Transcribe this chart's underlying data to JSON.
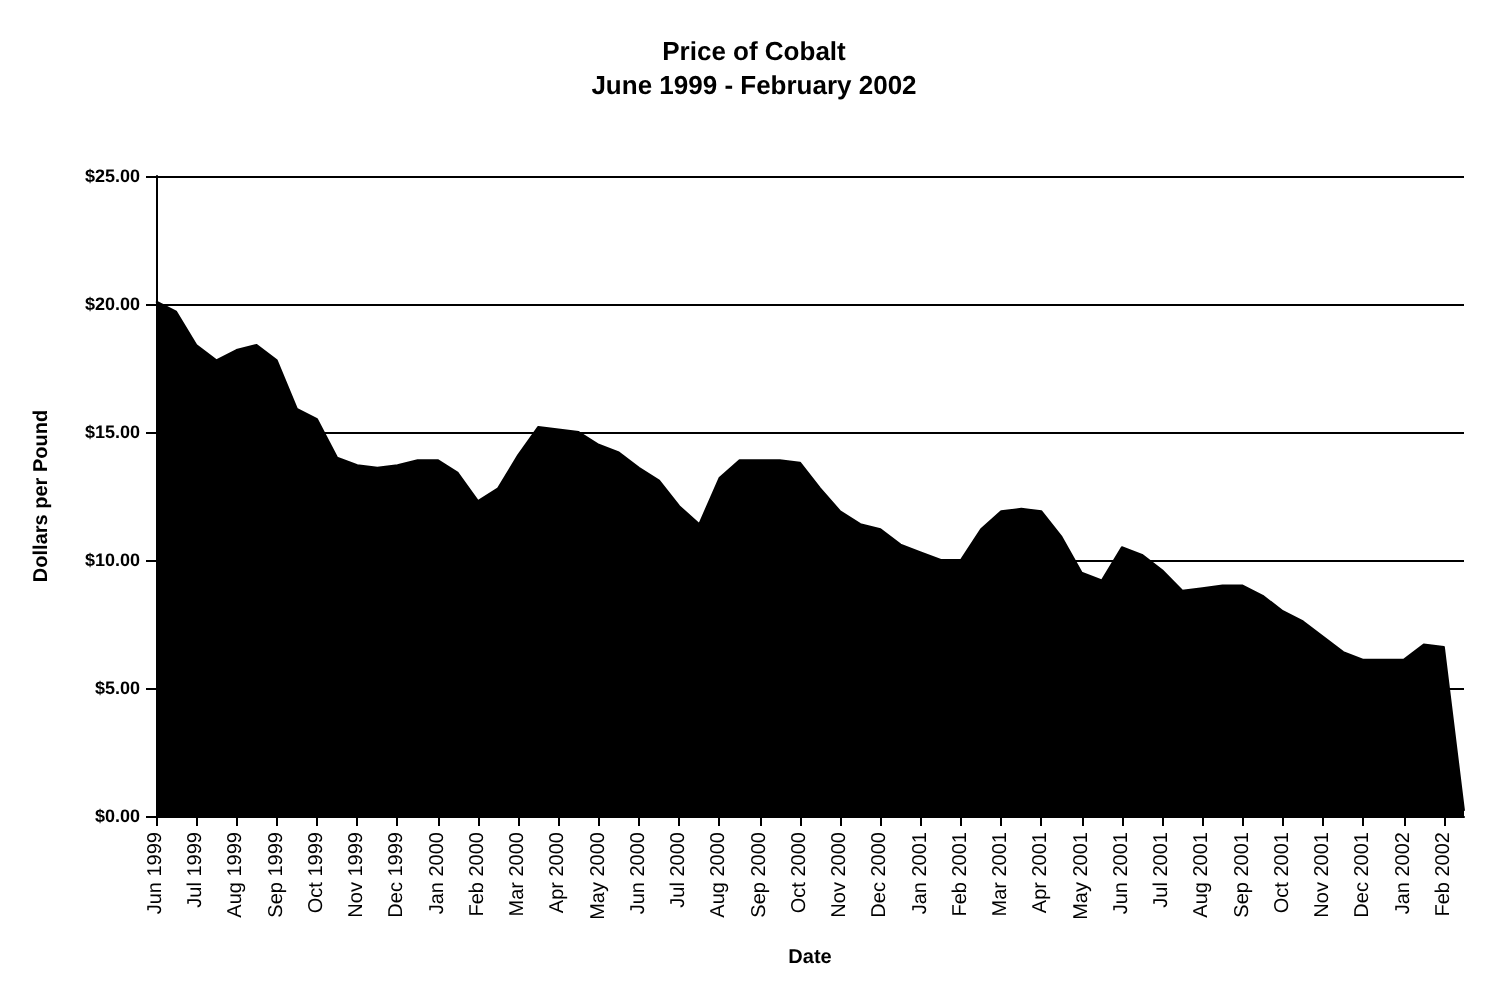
{
  "chart_data": {
    "type": "area",
    "title": "Price of Cobalt",
    "subtitle": "June 1999 - February 2002",
    "xlabel": "Date",
    "ylabel": "Dollars per Pound",
    "categories": [
      "Jun 1999",
      null,
      "Jul 1999",
      null,
      "Aug 1999",
      null,
      "Sep 1999",
      null,
      "Oct 1999",
      null,
      "Nov 1999",
      null,
      "Dec 1999",
      null,
      "Jan 2000",
      null,
      "Feb 2000",
      null,
      "Mar 2000",
      null,
      "Apr 2000",
      null,
      "May 2000",
      null,
      "Jun 2000",
      null,
      "Jul 2000",
      null,
      "Aug 2000",
      null,
      "Sep 2000",
      null,
      "Oct 2000",
      null,
      "Nov 2000",
      null,
      "Dec 2000",
      null,
      "Jan 2001",
      null,
      "Feb 2001",
      null,
      "Mar 2001",
      null,
      "Apr 2001",
      null,
      "May 2001",
      null,
      "Jun 2001",
      null,
      "Jul 2001",
      null,
      "Aug 2001",
      null,
      "Sep 2001",
      null,
      "Oct 2001",
      null,
      "Nov 2001",
      null,
      "Dec 2001",
      null,
      "Jan 2002",
      null,
      "Feb 2002",
      null
    ],
    "series": [
      {
        "color": "#000000",
        "values": [
          20.1,
          19.7,
          18.4,
          17.8,
          18.2,
          18.4,
          17.8,
          15.9,
          15.5,
          14.0,
          13.7,
          13.6,
          13.7,
          13.9,
          13.9,
          13.4,
          12.3,
          12.8,
          14.1,
          15.2,
          15.1,
          15.0,
          14.5,
          14.2,
          13.6,
          13.1,
          12.1,
          11.4,
          13.2,
          13.9,
          13.9,
          13.9,
          13.8,
          12.8,
          11.9,
          11.4,
          11.2,
          10.6,
          10.3,
          10.0,
          10.0,
          11.2,
          11.9,
          12.0,
          11.9,
          10.9,
          9.5,
          9.2,
          10.5,
          10.2,
          9.6,
          8.8,
          8.9,
          9.0,
          9.0,
          8.6,
          8.0,
          7.6,
          7.0,
          6.4,
          6.1,
          6.1,
          6.1,
          6.7,
          6.6,
          0.2
        ]
      }
    ],
    "ylim": [
      0,
      25
    ],
    "yticks": [
      {
        "value": 0,
        "label": "$0.00"
      },
      {
        "value": 5,
        "label": "$5.00"
      },
      {
        "value": 10,
        "label": "$10.00"
      },
      {
        "value": 15,
        "label": "$15.00"
      },
      {
        "value": 20,
        "label": "$20.00"
      },
      {
        "value": 25,
        "label": "$25.00"
      }
    ],
    "grid": "y"
  }
}
